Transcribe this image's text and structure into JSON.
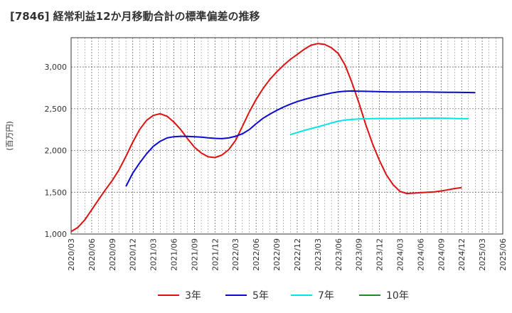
{
  "title": "[7846]  経常利益12か月移動合計の標準偏差の推移",
  "chart_data": {
    "type": "line",
    "ylabel": "(百万円)",
    "xlabel": "",
    "ylim": [
      1000,
      3350
    ],
    "y_ticks": [
      1000,
      1500,
      2000,
      2500,
      3000
    ],
    "y_tick_labels": [
      "1,000",
      "1,500",
      "2,000",
      "2,500",
      "3,000"
    ],
    "x_tick_labels": [
      "2020/03",
      "2020/06",
      "2020/09",
      "2020/12",
      "2021/03",
      "2021/06",
      "2021/09",
      "2021/12",
      "2022/03",
      "2022/06",
      "2022/09",
      "2022/12",
      "2023/03",
      "2023/06",
      "2023/09",
      "2023/12",
      "2024/03",
      "2024/06",
      "2024/09",
      "2024/12",
      "2025/03",
      "2025/06"
    ],
    "grid": true,
    "legend_position": "bottom",
    "series": [
      {
        "name": "3年",
        "color": "#dd1111",
        "start": "2020/03",
        "values": [
          1030,
          1080,
          1170,
          1290,
          1410,
          1530,
          1640,
          1770,
          1930,
          2100,
          2250,
          2360,
          2420,
          2440,
          2410,
          2340,
          2250,
          2140,
          2040,
          1970,
          1925,
          1915,
          1945,
          2010,
          2120,
          2290,
          2460,
          2610,
          2740,
          2850,
          2940,
          3020,
          3090,
          3150,
          3210,
          3260,
          3280,
          3270,
          3230,
          3160,
          3020,
          2810,
          2570,
          2310,
          2080,
          1880,
          1710,
          1590,
          1510,
          1485,
          1490,
          1495,
          1500,
          1505,
          1515,
          1530,
          1545,
          1555
        ]
      },
      {
        "name": "5年",
        "color": "#0a0ad0",
        "start": "2020/11",
        "values": [
          1570,
          1730,
          1850,
          1960,
          2050,
          2110,
          2150,
          2165,
          2170,
          2168,
          2165,
          2160,
          2152,
          2145,
          2142,
          2150,
          2170,
          2200,
          2250,
          2320,
          2385,
          2435,
          2480,
          2520,
          2555,
          2585,
          2610,
          2632,
          2652,
          2670,
          2688,
          2702,
          2710,
          2712,
          2710,
          2708,
          2706,
          2704,
          2702,
          2700,
          2700,
          2700,
          2700,
          2700,
          2700,
          2699,
          2698,
          2697,
          2696,
          2695,
          2694,
          2693
        ]
      },
      {
        "name": "7年",
        "color": "#00e5e5",
        "start": "2022/11",
        "values": [
          2190,
          2215,
          2240,
          2262,
          2282,
          2305,
          2330,
          2350,
          2365,
          2372,
          2377,
          2380,
          2382,
          2383,
          2383,
          2383,
          2384,
          2385,
          2386,
          2387,
          2388,
          2388,
          2387,
          2385,
          2383,
          2381,
          2380
        ]
      },
      {
        "name": "10年",
        "color": "#1e8c1e",
        "start": "2025/03",
        "values": []
      }
    ]
  }
}
